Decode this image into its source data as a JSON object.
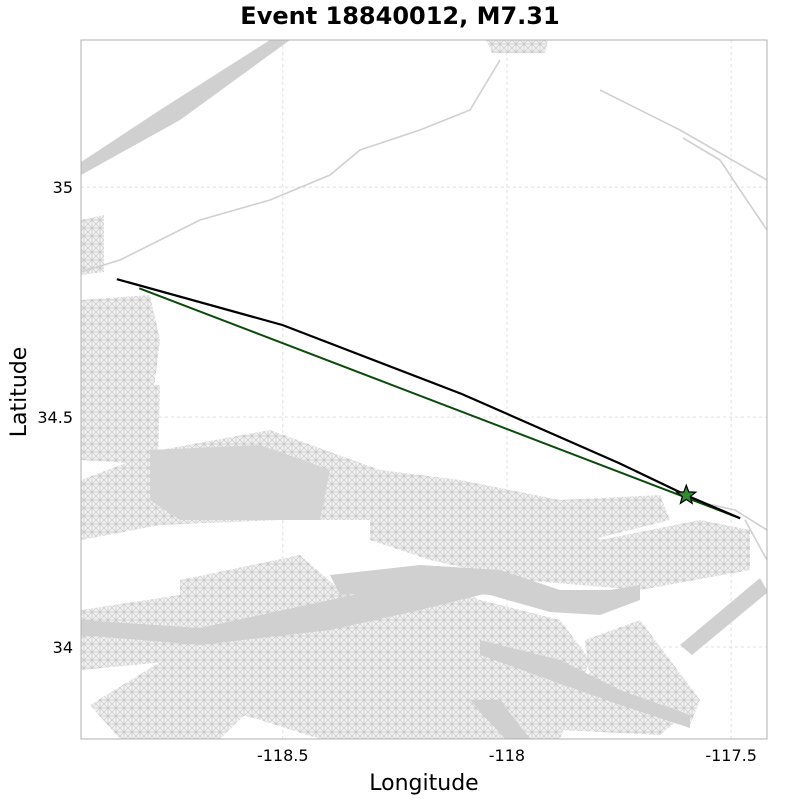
{
  "chart_data": {
    "type": "map",
    "title": "Event 18840012, M7.31",
    "xlabel": "Longitude",
    "ylabel": "Latitude",
    "xlim": [
      -118.95,
      -117.42
    ],
    "ylim": [
      33.8,
      35.32
    ],
    "x_ticks": [
      {
        "value": -118.5,
        "label": "-118.5"
      },
      {
        "value": -118.0,
        "label": "-118"
      },
      {
        "value": -117.5,
        "label": "-117.5"
      }
    ],
    "y_ticks": [
      {
        "value": 35.0,
        "label": "35"
      },
      {
        "value": 34.5,
        "label": "34.5"
      },
      {
        "value": 34.0,
        "label": "34"
      }
    ],
    "grid": true,
    "epicenter": {
      "lon": -117.6,
      "lat": 34.33,
      "marker": "star",
      "color": "#2e8b2e"
    },
    "rupture_trace": [
      [
        -118.87,
        34.8
      ],
      [
        -118.5,
        34.7
      ],
      [
        -118.1,
        34.55
      ],
      [
        -117.75,
        34.4
      ],
      [
        -117.6,
        34.33
      ],
      [
        -117.48,
        34.28
      ]
    ],
    "rupture_chord": [
      [
        -118.82,
        34.78
      ],
      [
        -117.48,
        34.28
      ]
    ],
    "background_colors": {
      "fault_mesh": "#d0d0d0",
      "trace": "#000000",
      "chord": "#0b4a0b"
    }
  }
}
